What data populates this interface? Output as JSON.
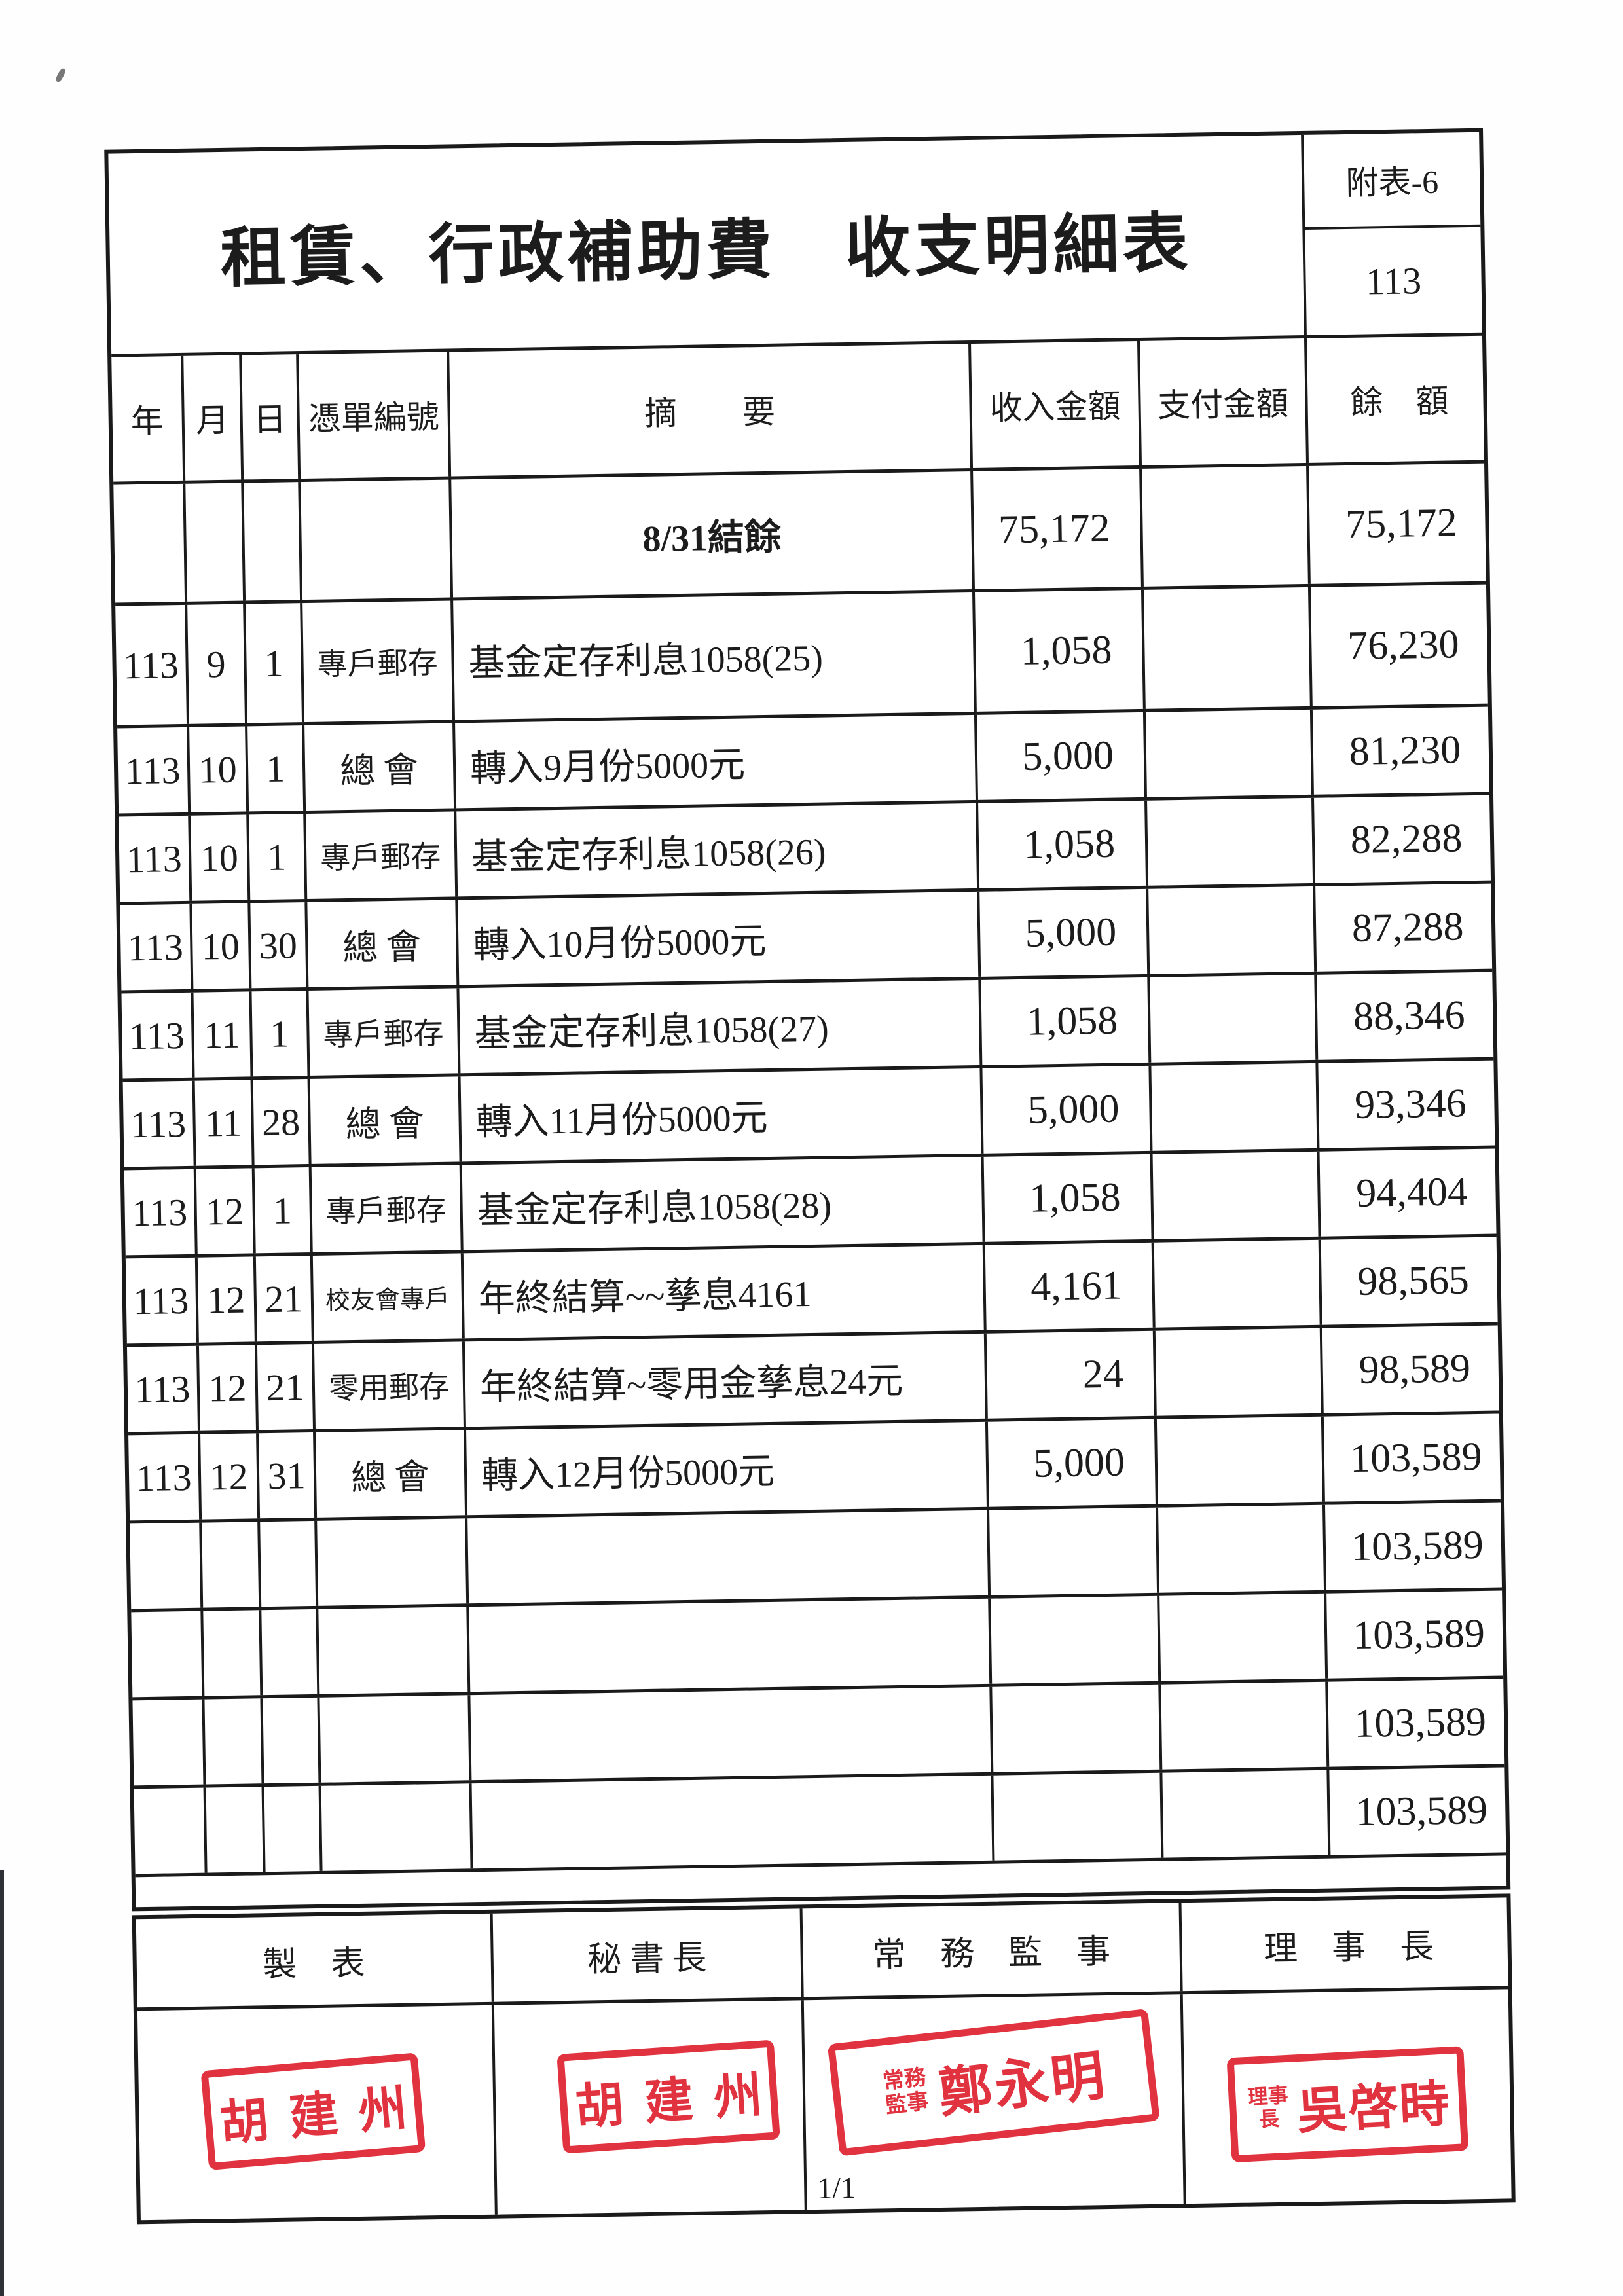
{
  "header": {
    "title": "租賃、行政補助費　收支明細表",
    "attachment_label": "附表-6",
    "fiscal_year": "113"
  },
  "table": {
    "columns": [
      "年",
      "月",
      "日",
      "憑單編號",
      "摘　　要",
      "收入金額",
      "支付金額",
      "餘　額"
    ],
    "rows": [
      {
        "year": "",
        "month": "",
        "day": "",
        "voucher": "",
        "summary": "8/31結餘",
        "income": "75,172",
        "payment": "",
        "balance": "75,172"
      },
      {
        "year": "113",
        "month": "9",
        "day": "1",
        "voucher": "專戶郵存",
        "summary": "基金定存利息1058(25)",
        "income": "1,058",
        "payment": "",
        "balance": "76,230"
      },
      {
        "year": "113",
        "month": "10",
        "day": "1",
        "voucher": "總會",
        "summary": "轉入9月份5000元",
        "income": "5,000",
        "payment": "",
        "balance": "81,230"
      },
      {
        "year": "113",
        "month": "10",
        "day": "1",
        "voucher": "專戶郵存",
        "summary": "基金定存利息1058(26)",
        "income": "1,058",
        "payment": "",
        "balance": "82,288"
      },
      {
        "year": "113",
        "month": "10",
        "day": "30",
        "voucher": "總會",
        "summary": "轉入10月份5000元",
        "income": "5,000",
        "payment": "",
        "balance": "87,288"
      },
      {
        "year": "113",
        "month": "11",
        "day": "1",
        "voucher": "專戶郵存",
        "summary": "基金定存利息1058(27)",
        "income": "1,058",
        "payment": "",
        "balance": "88,346"
      },
      {
        "year": "113",
        "month": "11",
        "day": "28",
        "voucher": "總會",
        "summary": "轉入11月份5000元",
        "income": "5,000",
        "payment": "",
        "balance": "93,346"
      },
      {
        "year": "113",
        "month": "12",
        "day": "1",
        "voucher": "專戶郵存",
        "summary": "基金定存利息1058(28)",
        "income": "1,058",
        "payment": "",
        "balance": "94,404"
      },
      {
        "year": "113",
        "month": "12",
        "day": "21",
        "voucher": "校友會專戶",
        "summary": "年終結算~~孳息4161",
        "income": "4,161",
        "payment": "",
        "balance": "98,565"
      },
      {
        "year": "113",
        "month": "12",
        "day": "21",
        "voucher": "零用郵存",
        "summary": "年終結算~零用金孳息24元",
        "income": "24",
        "payment": "",
        "balance": "98,589"
      },
      {
        "year": "113",
        "month": "12",
        "day": "31",
        "voucher": "總會",
        "summary": "轉入12月份5000元",
        "income": "5,000",
        "payment": "",
        "balance": "103,589"
      },
      {
        "year": "",
        "month": "",
        "day": "",
        "voucher": "",
        "summary": "",
        "income": "",
        "payment": "",
        "balance": "103,589"
      },
      {
        "year": "",
        "month": "",
        "day": "",
        "voucher": "",
        "summary": "",
        "income": "",
        "payment": "",
        "balance": "103,589"
      },
      {
        "year": "",
        "month": "",
        "day": "",
        "voucher": "",
        "summary": "",
        "income": "",
        "payment": "",
        "balance": "103,589"
      },
      {
        "year": "",
        "month": "",
        "day": "",
        "voucher": "",
        "summary": "",
        "income": "",
        "payment": "",
        "balance": "103,589"
      }
    ]
  },
  "signatures": {
    "headers": [
      "製　表",
      "秘 書 長",
      "常　務　監　事",
      "理　事　長"
    ],
    "stamps": [
      {
        "prefix": "",
        "name": "胡建州"
      },
      {
        "prefix": "",
        "name": "胡建州"
      },
      {
        "prefix": "常務監事",
        "name": "鄭永明"
      },
      {
        "prefix": "理事長",
        "name": "吳啓時"
      }
    ]
  },
  "page": {
    "footer": "1/1"
  },
  "colors": {
    "stamp_red": "#e0333f",
    "line_black": "#1a1a1a"
  }
}
